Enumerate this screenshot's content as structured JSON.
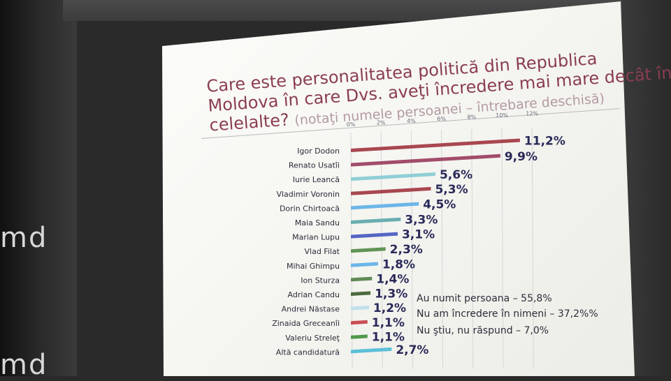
{
  "background": {
    "wall_text_1": "md",
    "wall_text_2": "md"
  },
  "chart_data": {
    "type": "bar",
    "orientation": "horizontal",
    "title": "Care este personalitatea politică din Republica Moldova în care Dvs. aveţi încredere mai mare decât în celelalte?",
    "title_lines": [
      "Care este personalitatea politică din Republica",
      "Moldova în care Dvs. aveţi încredere mai mare decât în",
      "celelalte?"
    ],
    "subtitle": "(notaţi numele persoanei – întrebare deschisă)",
    "xlim": [
      0,
      12
    ],
    "x_ticks": [
      0,
      2,
      4,
      6,
      8,
      10,
      12
    ],
    "x_tick_labels": [
      "0%",
      "2%",
      "4%",
      "6%",
      "8%",
      "10%",
      "12%"
    ],
    "grid": true,
    "categories": [
      "Igor Dodon",
      "Renato Usatîi",
      "Iurie Leancă",
      "Vladimir Voronin",
      "Dorin Chirtoacă",
      "Maia Sandu",
      "Marian Lupu",
      "Vlad Filat",
      "Mihai Ghimpu",
      "Ion Sturza",
      "Adrian Candu",
      "Andrei Năstase",
      "Zinaida Greceanîi",
      "Valeriu Streleţ",
      "Altă candidatură"
    ],
    "values": [
      11.2,
      9.9,
      5.6,
      5.3,
      4.5,
      3.3,
      3.1,
      2.3,
      1.8,
      1.4,
      1.3,
      1.2,
      1.1,
      1.1,
      2.7
    ],
    "value_labels": [
      "11,2%",
      "9,9%",
      "5,6%",
      "5,3%",
      "4,5%",
      "3,3%",
      "3,1%",
      "2,3%",
      "1,8%",
      "1,4%",
      "1,3%",
      "1,2%",
      "1,1%",
      "1,1%",
      "2,7%"
    ],
    "bar_colors": [
      "#a8474f",
      "#a24c6a",
      "#8fcfd6",
      "#a8474f",
      "#6cb6e8",
      "#6aaeb0",
      "#5566c4",
      "#5f9455",
      "#6cb6e8",
      "#5f8a56",
      "#4c6b3e",
      "#bfe0ea",
      "#c94e52",
      "#4f9a4a",
      "#5cc0d8"
    ],
    "annotations": [
      "Au numit persoana – 55,8%",
      "Nu am încredere în nimeni – 37,2%%",
      "Nu ştiu, nu răspund – 7,0%"
    ]
  }
}
